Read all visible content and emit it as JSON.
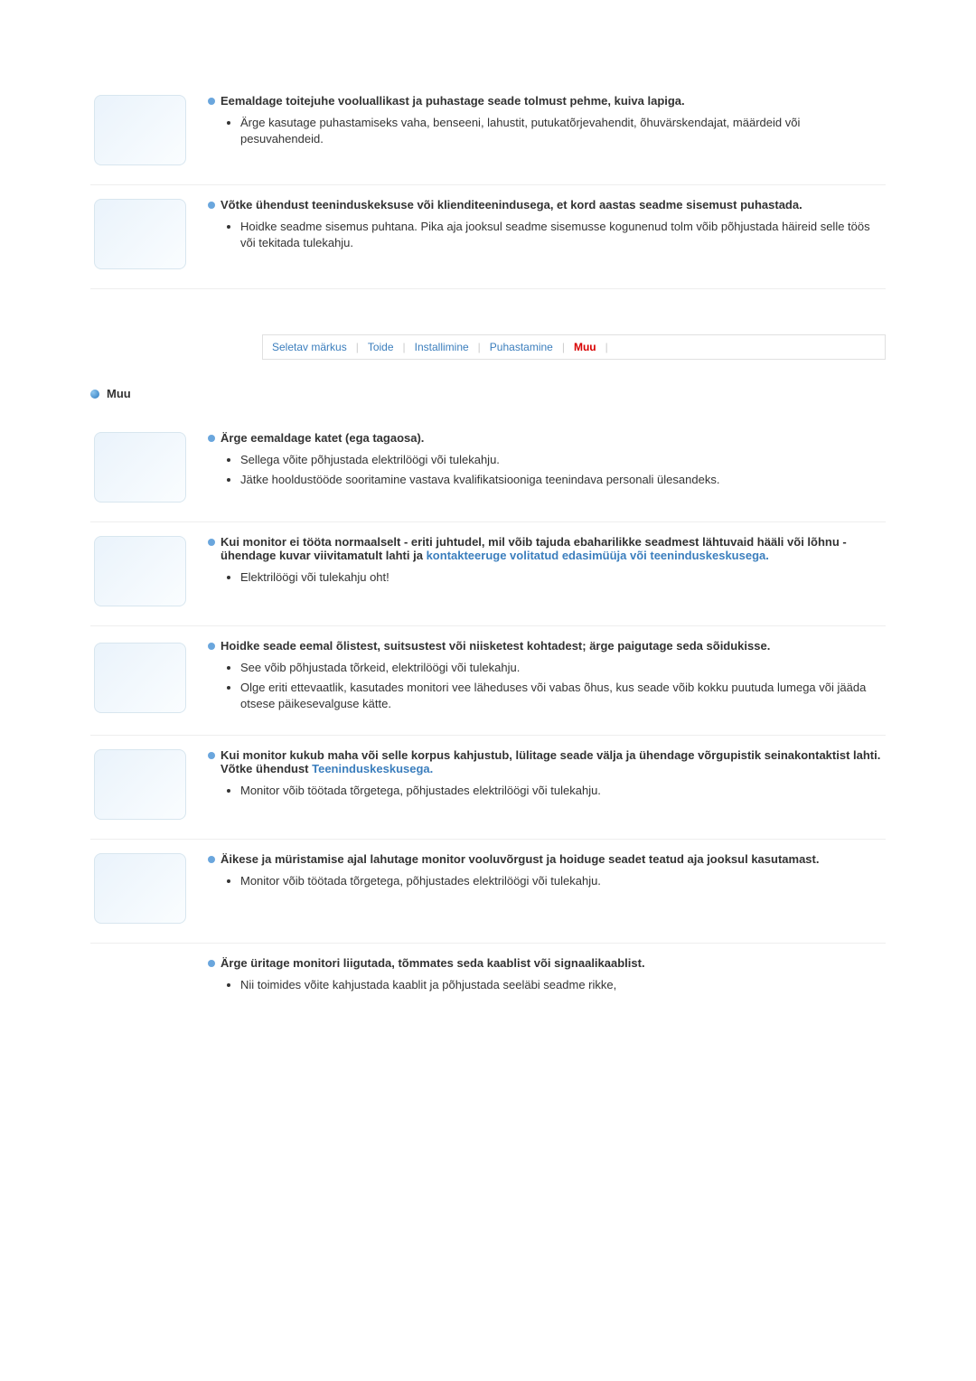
{
  "items_top": [
    {
      "heading": "Eemaldage toitejuhe vooluallikast ja puhastage seade tolmust pehme, kuiva lapiga.",
      "bullets": [
        "Ärge kasutage puhastamiseks vaha, benseeni, lahustit, putukatõrjevahendit, õhuvärskendajat, määrdeid või pesuvahendeid."
      ]
    },
    {
      "heading": "Võtke ühendust teeninduskeksuse või klienditeenindusega, et kord aastas seadme sisemust puhastada.",
      "bullets": [
        "Hoidke seadme sisemus puhtana. Pika aja jooksul seadme sisemusse kogunenud tolm võib põhjustada häireid selle töös või tekitada tulekahju."
      ]
    }
  ],
  "nav": {
    "items": [
      "Seletav märkus",
      "Toide",
      "Installimine",
      "Puhastamine"
    ],
    "active": "Muu"
  },
  "section_title": "Muu",
  "items_bottom": [
    {
      "heading": "Ärge eemaldage katet (ega tagaosa).",
      "bullets": [
        "Sellega võite põhjustada elektrilöögi või tulekahju.",
        "Jätke hooldustööde sooritamine vastava kvalifikatsiooniga teenindava personali ülesandeks."
      ]
    },
    {
      "heading": "Kui monitor ei tööta normaalselt - eriti juhtudel, mil võib tajuda ebaharilikke seadmest lähtuvaid hääli või lõhnu - ühendage kuvar viivitamatult lahti ja ",
      "heading_link": "kontakteeruge volitatud edasimüüja või teeninduskeskusega.",
      "bullets": [
        "Elektrilöögi või tulekahju oht!"
      ]
    },
    {
      "heading": "Hoidke seade eemal õlistest, suitsustest või niisketest kohtadest; ärge paigutage seda sõidukisse.",
      "bullets": [
        "See võib põhjustada tõrkeid, elektrilöögi või tulekahju.",
        "Olge eriti ettevaatlik, kasutades monitori vee läheduses või vabas õhus, kus seade võib kokku puutuda lumega või jääda otsese päikesevalguse kätte."
      ]
    },
    {
      "heading": "Kui monitor kukub maha või selle korpus kahjustub, lülitage seade välja ja ühendage võrgupistik seinakontaktist lahti.",
      "heading_extra_prefix": "Võtke ühendust ",
      "heading_extra_link": "Teeninduskeskusega.",
      "bullets": [
        "Monitor võib töötada tõrgetega, põhjustades elektrilöögi või tulekahju."
      ]
    },
    {
      "heading": "Äikese ja müristamise ajal lahutage monitor vooluvõrgust ja hoiduge seadet teatud aja jooksul kasutamast.",
      "bullets": [
        "Monitor võib töötada tõrgetega, põhjustades elektrilöögi või tulekahju."
      ]
    },
    {
      "heading": "Ärge üritage monitori liigutada, tõmmates seda kaablist või signaalikaablist.",
      "bullets": [
        "Nii toimides võite kahjustada kaablit ja põhjustada seeläbi seadme rikke,"
      ],
      "no_thumb": true,
      "no_border": true
    }
  ]
}
